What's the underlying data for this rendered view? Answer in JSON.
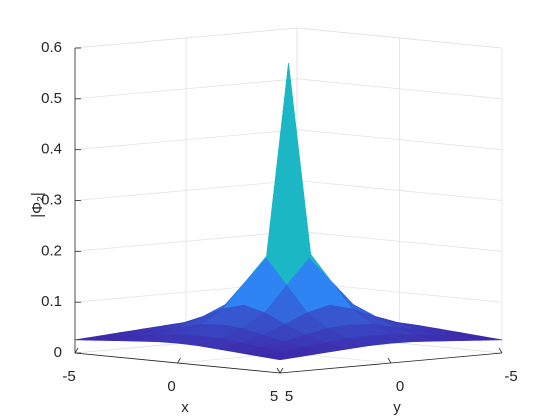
{
  "chart_data": {
    "type": "surface",
    "xlabel": "x",
    "ylabel": "y",
    "zlabel": "|Φ₂|",
    "x": [
      -5,
      -4,
      -3,
      -2,
      -1,
      0,
      1,
      2,
      3,
      4,
      5
    ],
    "y": [
      -5,
      -4,
      -3,
      -2,
      -1,
      0,
      1,
      2,
      3,
      4,
      5
    ],
    "z": [
      [
        0.026,
        0.029,
        0.032,
        0.035,
        0.038,
        0.039,
        0.038,
        0.035,
        0.032,
        0.029,
        0.026
      ],
      [
        0.029,
        0.034,
        0.039,
        0.044,
        0.048,
        0.049,
        0.048,
        0.044,
        0.039,
        0.034,
        0.029
      ],
      [
        0.032,
        0.039,
        0.046,
        0.055,
        0.064,
        0.067,
        0.064,
        0.055,
        0.046,
        0.039,
        0.032
      ],
      [
        0.035,
        0.044,
        0.055,
        0.072,
        0.091,
        0.102,
        0.091,
        0.072,
        0.055,
        0.044,
        0.035
      ],
      [
        0.038,
        0.048,
        0.064,
        0.091,
        0.141,
        0.19,
        0.141,
        0.091,
        0.064,
        0.048,
        0.038
      ],
      [
        0.039,
        0.049,
        0.067,
        0.102,
        0.19,
        0.57,
        0.19,
        0.102,
        0.067,
        0.049,
        0.039
      ],
      [
        0.038,
        0.048,
        0.064,
        0.091,
        0.141,
        0.19,
        0.141,
        0.091,
        0.064,
        0.048,
        0.038
      ],
      [
        0.035,
        0.044,
        0.055,
        0.072,
        0.091,
        0.102,
        0.091,
        0.072,
        0.055,
        0.044,
        0.035
      ],
      [
        0.032,
        0.039,
        0.046,
        0.055,
        0.064,
        0.067,
        0.064,
        0.055,
        0.046,
        0.039,
        0.032
      ],
      [
        0.029,
        0.034,
        0.039,
        0.044,
        0.048,
        0.049,
        0.048,
        0.044,
        0.039,
        0.034,
        0.029
      ],
      [
        0.026,
        0.029,
        0.032,
        0.035,
        0.038,
        0.039,
        0.038,
        0.035,
        0.032,
        0.029,
        0.026
      ]
    ],
    "xlim": [
      -5,
      5
    ],
    "ylim": [
      -5,
      5
    ],
    "zlim": [
      0,
      0.6
    ],
    "xticks": [
      -5,
      0,
      5
    ],
    "yticks": [
      5,
      0,
      -5
    ],
    "zticks": [
      0,
      0.1,
      0.2,
      0.3,
      0.4,
      0.5,
      0.6
    ],
    "grid": true,
    "colormap": "parula"
  }
}
